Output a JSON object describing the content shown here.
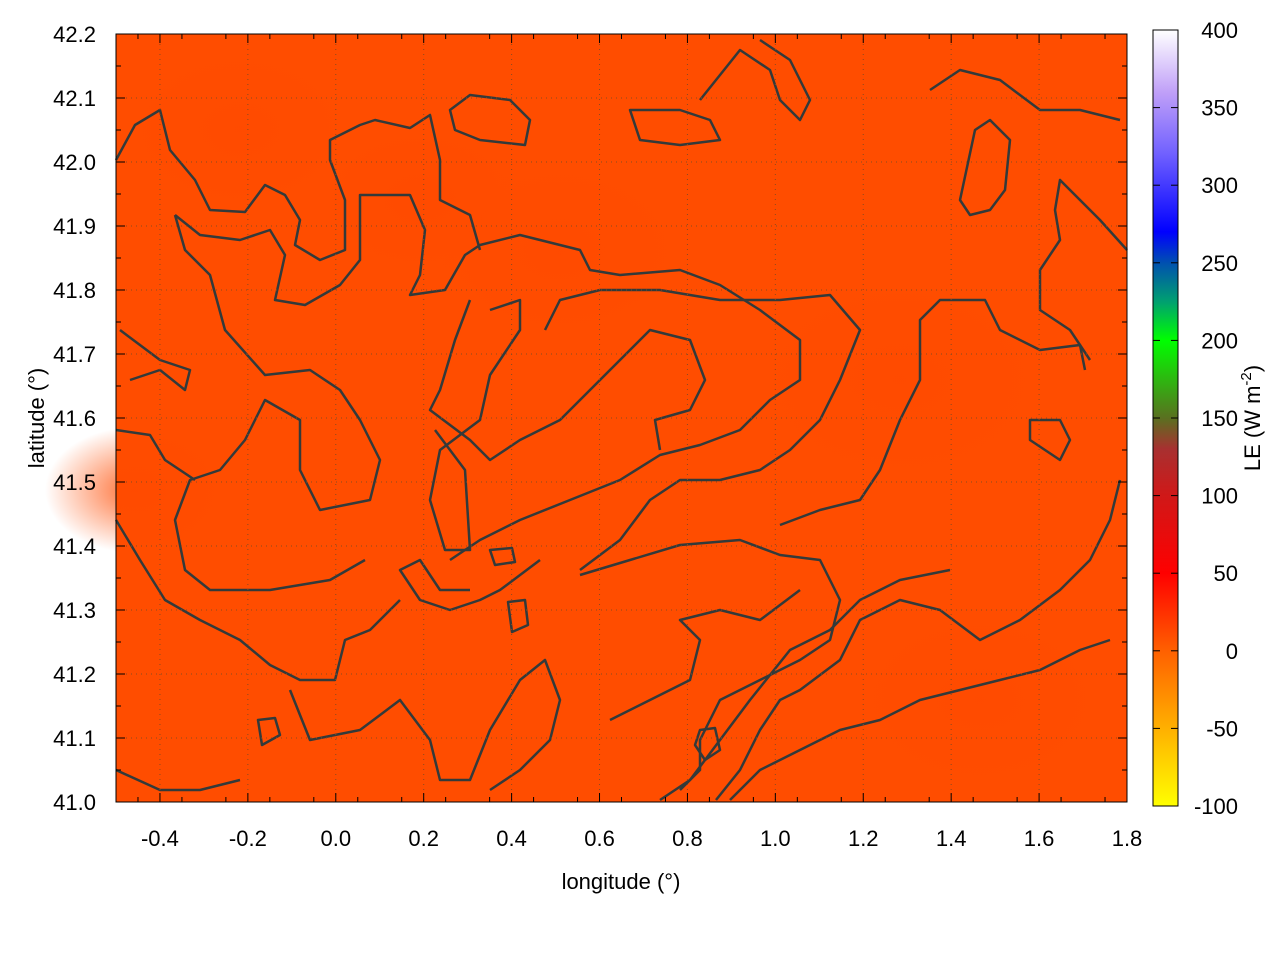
{
  "chart_data": {
    "type": "heatmap",
    "xlabel": "longitude (°)",
    "ylabel": "latitude (°)",
    "xlim": [
      -0.5,
      1.8
    ],
    "ylim": [
      41.0,
      42.2
    ],
    "xticks": [
      "-0.4",
      "-0.2",
      "0.0",
      "0.2",
      "0.4",
      "0.6",
      "0.8",
      "1.0",
      "1.2",
      "1.4",
      "1.6",
      "1.8"
    ],
    "yticks": [
      "41.0",
      "41.1",
      "41.2",
      "41.3",
      "41.4",
      "41.5",
      "41.6",
      "41.7",
      "41.8",
      "41.9",
      "42.0",
      "42.1",
      "42.2"
    ],
    "grid": true,
    "contours": true,
    "field_typical_value": 10,
    "colorbar": {
      "label": "LE (W m-2)",
      "label_main": "LE (W m",
      "label_sup": "-2",
      "label_end": ")",
      "range": [
        -100,
        400
      ],
      "ticks": [
        "400",
        "350",
        "300",
        "250",
        "200",
        "150",
        "100",
        "50",
        "0",
        "-50",
        "-100"
      ],
      "stops": [
        {
          "v": -100,
          "c": "#ffff00"
        },
        {
          "v": -50,
          "c": "#ffb000"
        },
        {
          "v": 0,
          "c": "#ff6000"
        },
        {
          "v": 50,
          "c": "#ff0000"
        },
        {
          "v": 100,
          "c": "#d01818"
        },
        {
          "v": 130,
          "c": "#a83030"
        },
        {
          "v": 150,
          "c": "#5a7020"
        },
        {
          "v": 200,
          "c": "#00ff00"
        },
        {
          "v": 225,
          "c": "#00a070"
        },
        {
          "v": 250,
          "c": "#0050b0"
        },
        {
          "v": 270,
          "c": "#0000ff"
        },
        {
          "v": 320,
          "c": "#7060ff"
        },
        {
          "v": 360,
          "c": "#c0a0f8"
        },
        {
          "v": 400,
          "c": "#ffffff"
        }
      ]
    }
  }
}
